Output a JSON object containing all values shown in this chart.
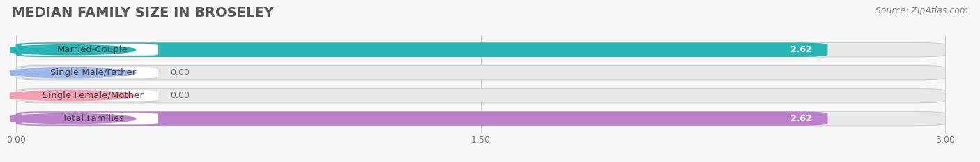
{
  "title": "MEDIAN FAMILY SIZE IN BROSELEY",
  "source": "Source: ZipAtlas.com",
  "categories": [
    "Married-Couple",
    "Single Male/Father",
    "Single Female/Mother",
    "Total Families"
  ],
  "values": [
    2.62,
    0.0,
    0.0,
    2.62
  ],
  "bar_colors": [
    "#29b5b5",
    "#9db8e8",
    "#f2a0b2",
    "#be82cc"
  ],
  "value_text_colors": [
    "#ffffff",
    "#777777",
    "#777777",
    "#ffffff"
  ],
  "xlim_min": 0,
  "xlim_max": 3.0,
  "xticks": [
    0.0,
    1.5,
    3.0
  ],
  "xtick_labels": [
    "0.00",
    "1.50",
    "3.00"
  ],
  "bar_height": 0.62,
  "background_color": "#f7f7f7",
  "bar_bg_color": "#e8e8e8",
  "title_fontsize": 14,
  "source_fontsize": 9,
  "label_fontsize": 9.5,
  "value_fontsize": 9
}
